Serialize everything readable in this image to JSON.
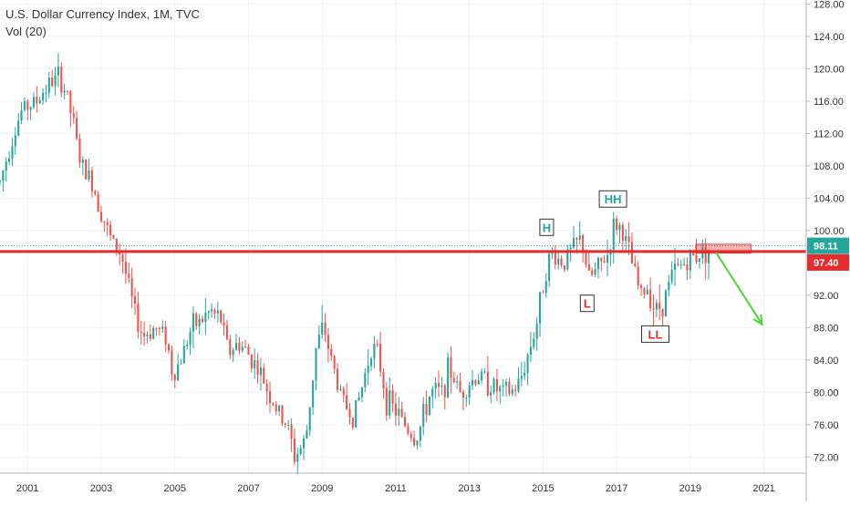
{
  "chart_data": {
    "type": "candlestick",
    "title": "U.S. Dollar Currency Index, 1M, TVC",
    "subtitle": "Vol (20)",
    "x_ticks": [
      "2001",
      "2003",
      "2005",
      "2007",
      "2009",
      "2011",
      "2013",
      "2015",
      "2017",
      "2019",
      "2021"
    ],
    "y_ticks": [
      "128.00",
      "124.00",
      "120.00",
      "116.00",
      "112.00",
      "108.00",
      "104.00",
      "100.00",
      "92.00",
      "88.00",
      "84.00",
      "80.00",
      "76.00",
      "72.00"
    ],
    "ylim": [
      70.0,
      128.5
    ],
    "xlim": [
      2000.3,
      2022.2
    ],
    "grid": true,
    "current_price": "98.11",
    "support_level": "97.40",
    "up_color": "#26a69a",
    "down_color": "#ef5350",
    "support_color": "#e52b2b",
    "price_path": [
      [
        2000.3,
        106
      ],
      [
        2000.6,
        111
      ],
      [
        2000.9,
        115
      ],
      [
        2001.3,
        116
      ],
      [
        2001.6,
        118
      ],
      [
        2001.9,
        119
      ],
      [
        2002.1,
        117
      ],
      [
        2002.3,
        113
      ],
      [
        2002.5,
        108
      ],
      [
        2002.8,
        106
      ],
      [
        2003.0,
        103
      ],
      [
        2003.3,
        99
      ],
      [
        2003.6,
        97
      ],
      [
        2003.8,
        93
      ],
      [
        2004.0,
        89
      ],
      [
        2004.2,
        87
      ],
      [
        2004.5,
        88
      ],
      [
        2004.8,
        87
      ],
      [
        2005.0,
        82
      ],
      [
        2005.2,
        84
      ],
      [
        2005.5,
        88
      ],
      [
        2005.8,
        89
      ],
      [
        2006.0,
        90
      ],
      [
        2006.3,
        89
      ],
      [
        2006.5,
        85
      ],
      [
        2006.8,
        86
      ],
      [
        2007.0,
        85
      ],
      [
        2007.3,
        83
      ],
      [
        2007.6,
        80
      ],
      [
        2007.9,
        77
      ],
      [
        2008.1,
        76
      ],
      [
        2008.3,
        72
      ],
      [
        2008.6,
        74
      ],
      [
        2008.9,
        86
      ],
      [
        2009.1,
        88
      ],
      [
        2009.3,
        84
      ],
      [
        2009.6,
        79
      ],
      [
        2009.9,
        77
      ],
      [
        2010.1,
        80
      ],
      [
        2010.4,
        86
      ],
      [
        2010.6,
        84
      ],
      [
        2010.8,
        79
      ],
      [
        2011.0,
        78
      ],
      [
        2011.3,
        76
      ],
      [
        2011.6,
        74
      ],
      [
        2011.8,
        77
      ],
      [
        2012.0,
        80
      ],
      [
        2012.3,
        80
      ],
      [
        2012.5,
        83
      ],
      [
        2012.8,
        80
      ],
      [
        2013.0,
        81
      ],
      [
        2013.3,
        82
      ],
      [
        2013.6,
        81
      ],
      [
        2013.9,
        80
      ],
      [
        2014.2,
        80
      ],
      [
        2014.4,
        81
      ],
      [
        2014.6,
        84
      ],
      [
        2014.9,
        89
      ],
      [
        2015.1,
        95
      ],
      [
        2015.3,
        97
      ],
      [
        2015.6,
        96
      ],
      [
        2015.9,
        98
      ],
      [
        2016.1,
        99
      ],
      [
        2016.3,
        94
      ],
      [
        2016.5,
        95
      ],
      [
        2016.8,
        97
      ],
      [
        2017.0,
        101
      ],
      [
        2017.2,
        100
      ],
      [
        2017.4,
        97
      ],
      [
        2017.7,
        92
      ],
      [
        2017.9,
        93
      ],
      [
        2018.1,
        90
      ],
      [
        2018.3,
        91
      ],
      [
        2018.6,
        95
      ],
      [
        2018.9,
        96
      ],
      [
        2019.2,
        97
      ],
      [
        2019.5,
        97.5
      ],
      [
        2019.6,
        98
      ]
    ],
    "highlight_zone": {
      "x": [
        2019.2,
        2020.7
      ],
      "y": [
        97.2,
        98.3
      ]
    },
    "forecast_arrow": {
      "from": [
        2019.75,
        97.3
      ],
      "to": [
        2021.0,
        88.4
      ]
    },
    "annotations": [
      {
        "text": "H",
        "x": 2015.15,
        "y": 100.4,
        "color": "#26a69a"
      },
      {
        "text": "HH",
        "x": 2016.95,
        "y": 103.9,
        "color": "#26a69a"
      },
      {
        "text": "L",
        "x": 2016.25,
        "y": 91.0,
        "color": "#e52b2b"
      },
      {
        "text": "LL",
        "x": 2018.1,
        "y": 87.2,
        "color": "#e52b2b"
      }
    ]
  }
}
